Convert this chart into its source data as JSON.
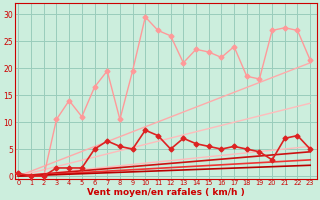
{
  "xlabel": "Vent moyen/en rafales ( km/h )",
  "bg_color": "#cceedd",
  "grid_color": "#99ccbb",
  "x_ticks": [
    0,
    1,
    2,
    3,
    4,
    5,
    6,
    7,
    8,
    9,
    10,
    11,
    12,
    13,
    14,
    15,
    16,
    17,
    18,
    19,
    20,
    21,
    22,
    23
  ],
  "y_ticks": [
    0,
    5,
    10,
    15,
    20,
    25,
    30
  ],
  "ylim": [
    -0.5,
    32
  ],
  "xlim": [
    -0.3,
    23.5
  ],
  "series": [
    {
      "x": [
        0,
        1,
        2,
        3,
        4,
        5,
        6,
        7,
        8,
        9,
        10,
        11,
        12,
        13,
        14,
        15,
        16,
        17,
        18,
        19,
        20,
        21,
        22,
        23
      ],
      "y": [
        0.5,
        0.0,
        0.0,
        10.5,
        14.0,
        11.0,
        16.5,
        19.5,
        10.5,
        19.5,
        29.5,
        27.0,
        26.0,
        21.0,
        23.5,
        23.0,
        22.0,
        24.0,
        18.5,
        18.0,
        27.0,
        27.5,
        27.0,
        21.5
      ],
      "color": "#ff9999",
      "lw": 1.0,
      "marker": "D",
      "ms": 2.5,
      "zorder": 3
    },
    {
      "x": [
        0,
        23
      ],
      "y": [
        0.0,
        21.0
      ],
      "color": "#ffaaaa",
      "lw": 1.0,
      "marker": null,
      "ms": 0,
      "zorder": 2
    },
    {
      "x": [
        0,
        23
      ],
      "y": [
        0.0,
        13.5
      ],
      "color": "#ffbbbb",
      "lw": 1.0,
      "marker": null,
      "ms": 0,
      "zorder": 2
    },
    {
      "x": [
        0,
        23
      ],
      "y": [
        0.0,
        5.5
      ],
      "color": "#ffbbbb",
      "lw": 1.0,
      "marker": null,
      "ms": 0,
      "zorder": 2
    },
    {
      "x": [
        0,
        1,
        2,
        3,
        4,
        5,
        6,
        7,
        8,
        9,
        10,
        11,
        12,
        13,
        14,
        15,
        16,
        17,
        18,
        19,
        20,
        21,
        22,
        23
      ],
      "y": [
        0.5,
        0.0,
        0.0,
        1.5,
        1.5,
        1.5,
        5.0,
        6.5,
        5.5,
        5.0,
        8.5,
        7.5,
        5.0,
        7.0,
        6.0,
        5.5,
        5.0,
        5.5,
        5.0,
        4.5,
        3.0,
        7.0,
        7.5,
        5.0
      ],
      "color": "#dd2222",
      "lw": 1.2,
      "marker": "D",
      "ms": 2.5,
      "zorder": 5
    },
    {
      "x": [
        0,
        23
      ],
      "y": [
        0.0,
        4.5
      ],
      "color": "#cc1111",
      "lw": 1.2,
      "marker": null,
      "ms": 0,
      "zorder": 4
    },
    {
      "x": [
        0,
        23
      ],
      "y": [
        0.0,
        3.0
      ],
      "color": "#ee3333",
      "lw": 1.2,
      "marker": null,
      "ms": 0,
      "zorder": 4
    },
    {
      "x": [
        0,
        23
      ],
      "y": [
        0.0,
        2.0
      ],
      "color": "#bb0000",
      "lw": 1.2,
      "marker": null,
      "ms": 0,
      "zorder": 4
    }
  ]
}
